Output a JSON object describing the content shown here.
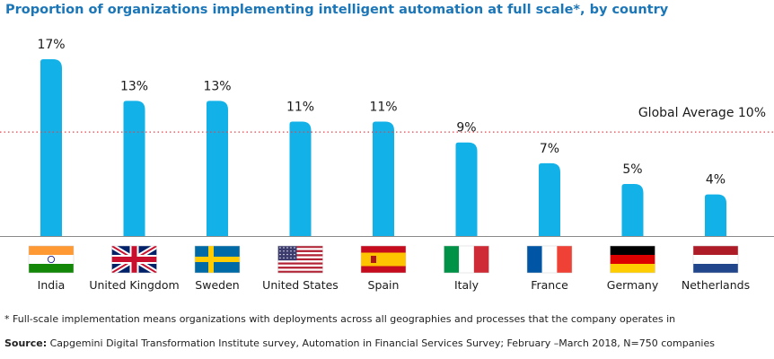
{
  "chart_data": {
    "type": "bar",
    "title": "Proportion of organizations implementing intelligent automation at full scale*, by country",
    "categories": [
      "India",
      "United Kingdom",
      "Sweden",
      "United States",
      "Spain",
      "Italy",
      "France",
      "Germany",
      "Netherlands"
    ],
    "values": [
      17,
      13,
      13,
      11,
      11,
      9,
      7,
      5,
      4
    ],
    "value_labels": [
      "17%",
      "13%",
      "13%",
      "11%",
      "11%",
      "9%",
      "7%",
      "5%",
      "4%"
    ],
    "unit": "%",
    "ylim": [
      0,
      17
    ],
    "reference_line": {
      "value": 10,
      "label": "Global Average 10%",
      "style": "dotted",
      "color": "#e8414a"
    },
    "bar_color": "#12b2e8",
    "axis_color": "#8a8a8a",
    "flags": [
      "india-flag",
      "uk-flag",
      "sweden-flag",
      "usa-flag",
      "spain-flag",
      "italy-flag",
      "france-flag",
      "germany-flag",
      "netherlands-flag"
    ],
    "grid": false,
    "legend": "none"
  },
  "footnote": "* Full-scale implementation means organizations with deployments across all geographies and processes that the company operates in",
  "source": {
    "label": "Source:",
    "text": " Capgemini Digital Transformation Institute survey, Automation in Financial Services Survey; February –March 2018, N=750 companies"
  }
}
